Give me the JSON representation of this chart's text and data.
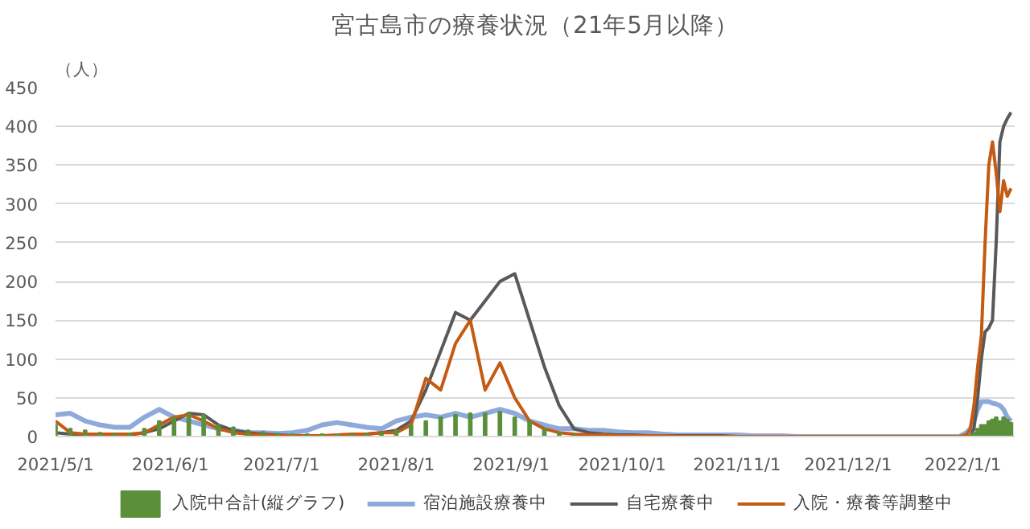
{
  "chart_data": {
    "type": "line",
    "title": "宮古島市の療養状況（21年5月以降）",
    "ylabel": "（人）",
    "x": [
      "2021-05-01",
      "2021-05-05",
      "2021-05-09",
      "2021-05-13",
      "2021-05-17",
      "2021-05-21",
      "2021-05-25",
      "2021-05-29",
      "2021-06-02",
      "2021-06-06",
      "2021-06-10",
      "2021-06-14",
      "2021-06-18",
      "2021-06-22",
      "2021-06-26",
      "2021-06-30",
      "2021-07-04",
      "2021-07-08",
      "2021-07-12",
      "2021-07-16",
      "2021-07-20",
      "2021-07-24",
      "2021-07-28",
      "2021-08-01",
      "2021-08-05",
      "2021-08-09",
      "2021-08-13",
      "2021-08-17",
      "2021-08-21",
      "2021-08-25",
      "2021-08-29",
      "2021-09-02",
      "2021-09-06",
      "2021-09-10",
      "2021-09-14",
      "2021-09-18",
      "2021-09-22",
      "2021-09-26",
      "2021-09-30",
      "2021-10-04",
      "2021-10-08",
      "2021-10-12",
      "2021-10-16",
      "2021-10-20",
      "2021-10-24",
      "2021-10-28",
      "2021-11-01",
      "2021-11-05",
      "2021-11-09",
      "2021-11-13",
      "2021-11-17",
      "2021-11-21",
      "2021-11-25",
      "2021-11-29",
      "2021-12-03",
      "2021-12-07",
      "2021-12-11",
      "2021-12-15",
      "2021-12-19",
      "2021-12-23",
      "2021-12-27",
      "2021-12-31",
      "2022-01-02",
      "2022-01-03",
      "2022-01-04",
      "2022-01-05",
      "2022-01-06",
      "2022-01-07",
      "2022-01-08",
      "2022-01-09",
      "2022-01-10",
      "2022-01-11",
      "2022-01-12",
      "2022-01-13",
      "2022-01-14"
    ],
    "series": [
      {
        "name": "入院中合計(縦グラフ)",
        "type": "bar",
        "color": "#5b8f3a",
        "values": [
          15,
          10,
          8,
          5,
          4,
          4,
          10,
          20,
          25,
          30,
          28,
          15,
          12,
          8,
          6,
          4,
          3,
          3,
          3,
          3,
          3,
          4,
          5,
          8,
          15,
          20,
          25,
          28,
          30,
          30,
          32,
          25,
          20,
          10,
          5,
          2,
          0,
          0,
          0,
          0,
          0,
          0,
          0,
          0,
          0,
          0,
          0,
          0,
          0,
          0,
          0,
          0,
          0,
          0,
          0,
          0,
          0,
          0,
          0,
          0,
          0,
          0,
          0,
          2,
          5,
          10,
          15,
          15,
          20,
          22,
          25,
          20,
          25,
          22,
          18
        ]
      },
      {
        "name": "宿泊施設療養中",
        "color": "#8eaadb",
        "values": [
          28,
          30,
          20,
          15,
          12,
          12,
          25,
          35,
          25,
          20,
          15,
          10,
          8,
          5,
          5,
          4,
          5,
          8,
          15,
          18,
          15,
          12,
          10,
          20,
          25,
          28,
          25,
          30,
          25,
          30,
          35,
          30,
          20,
          15,
          10,
          10,
          8,
          8,
          6,
          5,
          5,
          3,
          2,
          2,
          2,
          2,
          2,
          1,
          1,
          1,
          0,
          0,
          0,
          0,
          0,
          0,
          0,
          0,
          0,
          0,
          0,
          0,
          5,
          10,
          20,
          35,
          45,
          45,
          45,
          43,
          42,
          40,
          35,
          25,
          20
        ]
      },
      {
        "name": "自宅療養中",
        "color": "#595959",
        "values": [
          5,
          3,
          2,
          2,
          2,
          2,
          5,
          10,
          20,
          30,
          28,
          15,
          8,
          5,
          3,
          2,
          1,
          1,
          1,
          1,
          2,
          3,
          5,
          8,
          20,
          60,
          110,
          160,
          150,
          175,
          200,
          210,
          150,
          90,
          40,
          10,
          5,
          3,
          2,
          2,
          1,
          1,
          1,
          1,
          1,
          1,
          0,
          0,
          0,
          0,
          0,
          0,
          0,
          0,
          0,
          0,
          0,
          0,
          0,
          0,
          0,
          0,
          0,
          0,
          10,
          50,
          100,
          135,
          140,
          150,
          250,
          380,
          400,
          410,
          418
        ]
      },
      {
        "name": "入院・療養等調整中",
        "color": "#c55a11",
        "values": [
          20,
          5,
          3,
          3,
          3,
          3,
          5,
          15,
          25,
          28,
          20,
          10,
          5,
          3,
          2,
          1,
          1,
          1,
          1,
          2,
          3,
          3,
          5,
          5,
          15,
          75,
          60,
          120,
          150,
          60,
          95,
          50,
          20,
          10,
          5,
          3,
          2,
          2,
          1,
          1,
          1,
          1,
          0,
          0,
          0,
          0,
          0,
          0,
          0,
          0,
          0,
          0,
          0,
          0,
          0,
          0,
          0,
          0,
          0,
          0,
          0,
          0,
          2,
          10,
          40,
          90,
          130,
          250,
          350,
          380,
          340,
          290,
          330,
          310,
          320
        ]
      }
    ],
    "xlim": [
      "2021-05-01",
      "2022-01-15"
    ],
    "xticks": [
      {
        "value": "2021-05-01",
        "label": "2021/5/1"
      },
      {
        "value": "2021-06-01",
        "label": "2021/6/1"
      },
      {
        "value": "2021-07-01",
        "label": "2021/7/1"
      },
      {
        "value": "2021-08-01",
        "label": "2021/8/1"
      },
      {
        "value": "2021-09-01",
        "label": "2021/9/1"
      },
      {
        "value": "2021-10-01",
        "label": "2021/10/1"
      },
      {
        "value": "2021-11-01",
        "label": "2021/11/1"
      },
      {
        "value": "2021-12-01",
        "label": "2021/12/1"
      },
      {
        "value": "2022-01-01",
        "label": "2022/1/1"
      }
    ],
    "ylim": [
      0,
      450
    ],
    "yticks": [
      0,
      50,
      100,
      150,
      200,
      250,
      300,
      350,
      400,
      450
    ],
    "grid": "y",
    "legend": "bottom",
    "marker": "none",
    "line_style": "solid"
  }
}
